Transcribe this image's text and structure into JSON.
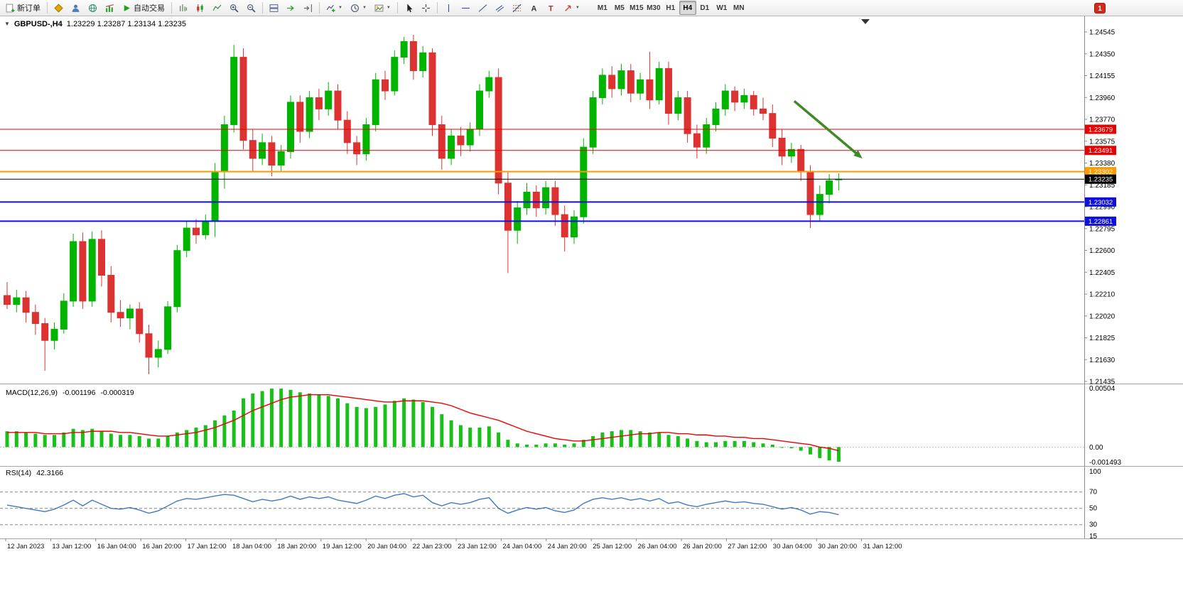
{
  "toolbar": {
    "new_order": {
      "label": "新订单",
      "icon": "new-order-icon"
    },
    "autotrading": {
      "label": "自动交易",
      "icon": "play-icon"
    },
    "icon_buttons": [
      "market-watch-icon",
      "profiles-icon",
      "web-terminal-icon",
      "strategy-tester-icon"
    ],
    "chart_tools": [
      "bar-chart-icon",
      "candlestick-chart-icon",
      "line-chart-icon",
      "zoom-in-icon",
      "zoom-out-icon",
      "tile-windows-icon",
      "auto-scroll-icon",
      "chart-shift-icon",
      "indicators-icon",
      "periods-icon",
      "templates-icon",
      "cursor-icon",
      "crosshair-icon",
      "vertical-line-icon",
      "horizontal-line-icon",
      "trendline-icon",
      "channel-icon",
      "fibonacci-icon",
      "text-icon",
      "label-icon",
      "arrows-icon"
    ],
    "timeframes": [
      "M1",
      "M5",
      "M15",
      "M30",
      "H1",
      "H4",
      "D1",
      "W1",
      "MN"
    ],
    "active_timeframe": "H4",
    "badge": "1"
  },
  "chart": {
    "symbol_period": "GBPUSD-,H4",
    "ohlc_text": "1.23229 1.23287 1.23134 1.23235"
  },
  "price_axis": [
    "1.24545",
    "1.24350",
    "1.24155",
    "1.23960",
    "1.23770",
    "1.23575",
    "1.23380",
    "1.23185",
    "1.22990",
    "1.22795",
    "1.22600",
    "1.22405",
    "1.22210",
    "1.22020",
    "1.21825",
    "1.21630",
    "1.21435"
  ],
  "hlines": [
    {
      "price": 1.23679,
      "label": "1.23679",
      "color": "#e80000",
      "width": 1
    },
    {
      "price": 1.23491,
      "label": "1.23491",
      "color": "#e80000",
      "width": 1
    },
    {
      "price": 1.23302,
      "label": "1.23302",
      "color": "#ff9a00",
      "width": 2
    },
    {
      "price": 1.23032,
      "label": "1.23032",
      "color": "#1010dc",
      "width": 2
    },
    {
      "price": 1.22861,
      "label": "1.22861",
      "color": "#1010dc",
      "width": 2
    }
  ],
  "current_price": {
    "price": 1.23235,
    "label": "1.23235",
    "color": "#000000"
  },
  "macd": {
    "name": "MACD(12,26,9)",
    "value1": "-0.001196",
    "value2": "-0.000319",
    "axis_labels": [
      "0.00504",
      "0.00",
      "-0.001493"
    ]
  },
  "rsi": {
    "name": "RSI(14)",
    "value": "42.3166",
    "axis_labels": [
      "100",
      "70",
      "50",
      "30",
      "15"
    ]
  },
  "time_axis": [
    "12 Jan 2023",
    "13 Jan 12:00",
    "16 Jan 04:00",
    "16 Jan 20:00",
    "17 Jan 12:00",
    "18 Jan 04:00",
    "18 Jan 20:00",
    "19 Jan 12:00",
    "20 Jan 04:00",
    "22 Jan 23:00",
    "23 Jan 12:00",
    "24 Jan 04:00",
    "24 Jan 20:00",
    "25 Jan 12:00",
    "26 Jan 04:00",
    "26 Jan 20:00",
    "27 Jan 12:00",
    "30 Jan 04:00",
    "30 Jan 20:00",
    "31 Jan 12:00"
  ],
  "colors": {
    "bull": "#00b400",
    "bear": "#dd3232",
    "macd_histogram": "#19c019",
    "macd_signal": "#f00000",
    "rsi_line": "#3f79c0",
    "grid": "#9a9a9a",
    "level_dash": "#8c8c8c",
    "arrow": "#3f8a28",
    "axis_line": "#8a8a8a",
    "separator": "#a6a6a6"
  },
  "chart_data": {
    "type": "candlestick",
    "symbol": "GBPUSD-",
    "period": "H4",
    "ylim": [
      1.21435,
      1.24545
    ],
    "x_labels": [
      "12 Jan 2023",
      "13 Jan 12:00",
      "16 Jan 04:00",
      "16 Jan 20:00",
      "17 Jan 12:00",
      "18 Jan 04:00",
      "18 Jan 20:00",
      "19 Jan 12:00",
      "20 Jan 04:00",
      "22 Jan 23:00",
      "23 Jan 12:00",
      "24 Jan 04:00",
      "24 Jan 20:00",
      "25 Jan 12:00",
      "26 Jan 04:00",
      "26 Jan 20:00",
      "27 Jan 12:00",
      "30 Jan 04:00",
      "30 Jan 20:00",
      "31 Jan 12:00"
    ],
    "candles": [
      [
        1.222,
        1.2232,
        1.2208,
        1.2212
      ],
      [
        1.2212,
        1.2225,
        1.2205,
        1.2218
      ],
      [
        1.2218,
        1.2224,
        1.2196,
        1.2205
      ],
      [
        1.2205,
        1.2212,
        1.2185,
        1.2195
      ],
      [
        1.2195,
        1.22,
        1.2153,
        1.218
      ],
      [
        1.218,
        1.2196,
        1.2172,
        1.219
      ],
      [
        1.219,
        1.2222,
        1.2186,
        1.2215
      ],
      [
        1.2215,
        1.2275,
        1.221,
        1.2268
      ],
      [
        1.2268,
        1.2276,
        1.2208,
        1.2215
      ],
      [
        1.2215,
        1.2277,
        1.221,
        1.227
      ],
      [
        1.227,
        1.2278,
        1.2228,
        1.2238
      ],
      [
        1.2238,
        1.2246,
        1.2196,
        1.2205
      ],
      [
        1.2205,
        1.2216,
        1.2192,
        1.22
      ],
      [
        1.22,
        1.2212,
        1.219,
        1.2208
      ],
      [
        1.2208,
        1.2214,
        1.2178,
        1.2186
      ],
      [
        1.2186,
        1.2194,
        1.215,
        1.2165
      ],
      [
        1.2165,
        1.218,
        1.2156,
        1.2172
      ],
      [
        1.2172,
        1.2215,
        1.2168,
        1.221
      ],
      [
        1.221,
        1.2265,
        1.2205,
        1.226
      ],
      [
        1.226,
        1.2286,
        1.2254,
        1.228
      ],
      [
        1.228,
        1.2288,
        1.2266,
        1.2274
      ],
      [
        1.2274,
        1.2292,
        1.227,
        1.2286
      ],
      [
        1.2286,
        1.2338,
        1.2272,
        1.233
      ],
      [
        1.233,
        1.238,
        1.2315,
        1.2372
      ],
      [
        1.2372,
        1.2443,
        1.2365,
        1.2432
      ],
      [
        1.2432,
        1.244,
        1.235,
        1.2358
      ],
      [
        1.2358,
        1.2368,
        1.233,
        1.2342
      ],
      [
        1.2342,
        1.2364,
        1.2336,
        1.2356
      ],
      [
        1.2356,
        1.2362,
        1.2326,
        1.2336
      ],
      [
        1.2336,
        1.2354,
        1.233,
        1.2348
      ],
      [
        1.2348,
        1.2398,
        1.2342,
        1.2392
      ],
      [
        1.2392,
        1.2398,
        1.2356,
        1.2366
      ],
      [
        1.2366,
        1.2402,
        1.236,
        1.2396
      ],
      [
        1.2396,
        1.2404,
        1.2376,
        1.2386
      ],
      [
        1.2386,
        1.241,
        1.238,
        1.2402
      ],
      [
        1.2402,
        1.2408,
        1.2368,
        1.2376
      ],
      [
        1.2376,
        1.2384,
        1.2346,
        1.2356
      ],
      [
        1.2356,
        1.2362,
        1.2336,
        1.2346
      ],
      [
        1.2346,
        1.2378,
        1.234,
        1.2372
      ],
      [
        1.2372,
        1.2418,
        1.2366,
        1.2412
      ],
      [
        1.2412,
        1.242,
        1.2394,
        1.2402
      ],
      [
        1.2402,
        1.2438,
        1.2398,
        1.2432
      ],
      [
        1.2432,
        1.245,
        1.2426,
        1.2446
      ],
      [
        1.2446,
        1.2452,
        1.2412,
        1.242
      ],
      [
        1.242,
        1.2442,
        1.2414,
        1.2436
      ],
      [
        1.2436,
        1.244,
        1.2362,
        1.2372
      ],
      [
        1.2372,
        1.238,
        1.2332,
        1.2342
      ],
      [
        1.2342,
        1.2368,
        1.2336,
        1.2362
      ],
      [
        1.2362,
        1.237,
        1.2344,
        1.2354
      ],
      [
        1.2354,
        1.2374,
        1.2348,
        1.2368
      ],
      [
        1.2368,
        1.2408,
        1.2362,
        1.2402
      ],
      [
        1.2402,
        1.242,
        1.2396,
        1.2414
      ],
      [
        1.2414,
        1.2422,
        1.231,
        1.232
      ],
      [
        1.232,
        1.233,
        1.224,
        1.2278
      ],
      [
        1.2278,
        1.2304,
        1.2266,
        1.2298
      ],
      [
        1.2298,
        1.232,
        1.2292,
        1.2312
      ],
      [
        1.2312,
        1.2318,
        1.229,
        1.2298
      ],
      [
        1.2298,
        1.2322,
        1.2292,
        1.2316
      ],
      [
        1.2316,
        1.2322,
        1.2282,
        1.2292
      ],
      [
        1.2292,
        1.23,
        1.2259,
        1.2272
      ],
      [
        1.2272,
        1.2296,
        1.2266,
        1.229
      ],
      [
        1.229,
        1.236,
        1.2284,
        1.2352
      ],
      [
        1.2352,
        1.2402,
        1.2346,
        1.2396
      ],
      [
        1.2396,
        1.2422,
        1.239,
        1.2416
      ],
      [
        1.2416,
        1.2424,
        1.2396,
        1.2404
      ],
      [
        1.2404,
        1.2426,
        1.2398,
        1.242
      ],
      [
        1.242,
        1.2426,
        1.2392,
        1.24
      ],
      [
        1.24,
        1.2418,
        1.2394,
        1.2412
      ],
      [
        1.2412,
        1.2437,
        1.2386,
        1.2394
      ],
      [
        1.2394,
        1.2428,
        1.239,
        1.2422
      ],
      [
        1.2422,
        1.2428,
        1.2372,
        1.2382
      ],
      [
        1.2382,
        1.2402,
        1.2376,
        1.2396
      ],
      [
        1.2396,
        1.2402,
        1.2356,
        1.2364
      ],
      [
        1.2364,
        1.2372,
        1.2342,
        1.2352
      ],
      [
        1.2352,
        1.2378,
        1.2346,
        1.2372
      ],
      [
        1.2372,
        1.2392,
        1.2366,
        1.2386
      ],
      [
        1.2386,
        1.2408,
        1.238,
        1.2402
      ],
      [
        1.2402,
        1.2406,
        1.2384,
        1.2392
      ],
      [
        1.2392,
        1.2404,
        1.2386,
        1.2398
      ],
      [
        1.2398,
        1.2402,
        1.238,
        1.2386
      ],
      [
        1.2386,
        1.2396,
        1.2376,
        1.2382
      ],
      [
        1.2382,
        1.239,
        1.2352,
        1.236
      ],
      [
        1.236,
        1.2368,
        1.2336,
        1.2344
      ],
      [
        1.2344,
        1.2356,
        1.2338,
        1.235
      ],
      [
        1.235,
        1.2354,
        1.2322,
        1.233
      ],
      [
        1.233,
        1.2336,
        1.228,
        1.2292
      ],
      [
        1.2292,
        1.2318,
        1.2286,
        1.231
      ],
      [
        1.231,
        1.2328,
        1.2302,
        1.2322
      ],
      [
        1.23229,
        1.23287,
        1.23134,
        1.23235
      ]
    ],
    "indicators": [
      {
        "name": "MACD(12,26,9)",
        "type": "histogram+line",
        "current_main": -0.001196,
        "current_signal": -0.000319,
        "ylim": [
          -0.001493,
          0.00504
        ],
        "histogram": [
          0.0013,
          0.0013,
          0.0012,
          0.0011,
          0.001,
          0.001,
          0.0012,
          0.0015,
          0.0014,
          0.0015,
          0.0013,
          0.0011,
          0.001,
          0.001,
          0.0009,
          0.0007,
          0.0007,
          0.0009,
          0.0012,
          0.0014,
          0.0016,
          0.0018,
          0.0022,
          0.0026,
          0.003,
          0.004,
          0.0044,
          0.0046,
          0.0048,
          0.0048,
          0.0047,
          0.0045,
          0.0044,
          0.0043,
          0.0042,
          0.004,
          0.0036,
          0.0033,
          0.0032,
          0.0033,
          0.0035,
          0.0038,
          0.004,
          0.0039,
          0.0037,
          0.0033,
          0.0027,
          0.0022,
          0.0018,
          0.0016,
          0.0016,
          0.0017,
          0.0012,
          0.0006,
          0.0003,
          0.0002,
          0.0002,
          0.0003,
          0.0003,
          0.0002,
          0.0003,
          0.0006,
          0.0009,
          0.0012,
          0.0013,
          0.0014,
          0.0014,
          0.0013,
          0.0012,
          0.0012,
          0.001,
          0.0009,
          0.0007,
          0.0005,
          0.0004,
          0.0004,
          0.0005,
          0.0005,
          0.0005,
          0.0004,
          0.0003,
          0.0002,
          0.0,
          -0.0001,
          -0.0003,
          -0.0006,
          -0.0009,
          -0.0011,
          -0.0012
        ],
        "signal": [
          0.0012,
          0.0012,
          0.0012,
          0.0012,
          0.0011,
          0.0011,
          0.0011,
          0.0012,
          0.0012,
          0.0013,
          0.0013,
          0.0013,
          0.0012,
          0.0012,
          0.0011,
          0.001,
          0.0009,
          0.0009,
          0.001,
          0.0011,
          0.0012,
          0.0014,
          0.0016,
          0.0019,
          0.0022,
          0.0026,
          0.003,
          0.0033,
          0.0036,
          0.0039,
          0.0041,
          0.0042,
          0.0043,
          0.0043,
          0.0043,
          0.0042,
          0.0041,
          0.004,
          0.0039,
          0.0038,
          0.0037,
          0.0037,
          0.0038,
          0.0038,
          0.0038,
          0.0037,
          0.0036,
          0.0034,
          0.0031,
          0.0028,
          0.0026,
          0.0024,
          0.0022,
          0.0019,
          0.0016,
          0.0013,
          0.0011,
          0.0009,
          0.0007,
          0.0006,
          0.0005,
          0.0005,
          0.0006,
          0.0007,
          0.0008,
          0.0009,
          0.001,
          0.0011,
          0.0011,
          0.0012,
          0.0012,
          0.0011,
          0.0011,
          0.001,
          0.001,
          0.0009,
          0.0009,
          0.0008,
          0.0008,
          0.0007,
          0.0007,
          0.0006,
          0.0005,
          0.0004,
          0.0003,
          0.0002,
          0.0,
          -0.0001,
          -0.0003
        ]
      },
      {
        "name": "RSI(14)",
        "type": "line",
        "current": 42.3166,
        "ylim": [
          15,
          100
        ],
        "levels": [
          70,
          50,
          30
        ],
        "values": [
          54,
          52,
          50,
          48,
          46,
          49,
          54,
          60,
          53,
          60,
          55,
          50,
          49,
          51,
          48,
          44,
          47,
          53,
          59,
          62,
          61,
          63,
          65,
          67,
          66,
          62,
          58,
          61,
          59,
          61,
          65,
          61,
          64,
          62,
          64,
          60,
          58,
          56,
          60,
          65,
          62,
          66,
          68,
          64,
          66,
          57,
          53,
          57,
          55,
          57,
          61,
          63,
          50,
          44,
          48,
          51,
          49,
          51,
          47,
          45,
          48,
          56,
          61,
          63,
          61,
          63,
          60,
          62,
          59,
          62,
          56,
          58,
          54,
          52,
          55,
          57,
          59,
          57,
          58,
          56,
          55,
          52,
          49,
          51,
          48,
          43,
          46,
          45,
          42.3
        ]
      }
    ],
    "annotations": [
      {
        "type": "arrow",
        "from": [
          83.3,
          1.2393
        ],
        "to": [
          90.5,
          1.2342
        ],
        "color": "#3f8a28"
      }
    ]
  }
}
